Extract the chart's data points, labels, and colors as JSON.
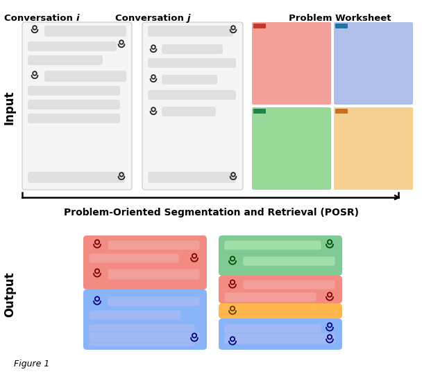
{
  "label_input": "Input",
  "label_output": "Output",
  "title_conv_i": "Conversation ",
  "italic_i": "i",
  "title_conv_j": "Conversation ",
  "italic_j": "j",
  "title_worksheet": "Problem Worksheet",
  "posr_label": "Problem-Oriented Segmentation and Retrieval (POSR)",
  "figure_label": "Figure 1",
  "bg": "#ffffff",
  "gray_bubble": "#e0e0e0",
  "box_bg": "#f5f5f5",
  "box_border": "#c8c8c8",
  "red": "#f28b82",
  "green": "#81c995",
  "blue": "#8ab4f8",
  "orange": "#ffb74d",
  "ws_red": "#f4a09a",
  "ws_blue": "#b0c0ea",
  "ws_green": "#98d898",
  "ws_orange": "#f5d090",
  "icon_dark": "#222222",
  "icon_red": "#7b0000",
  "icon_green": "#004d00",
  "icon_blue": "#00007b",
  "icon_orange": "#6b3800",
  "red_darker": "#f4a09a",
  "blue_darker": "#a0b8f4",
  "green_darker": "#a0e0a8"
}
